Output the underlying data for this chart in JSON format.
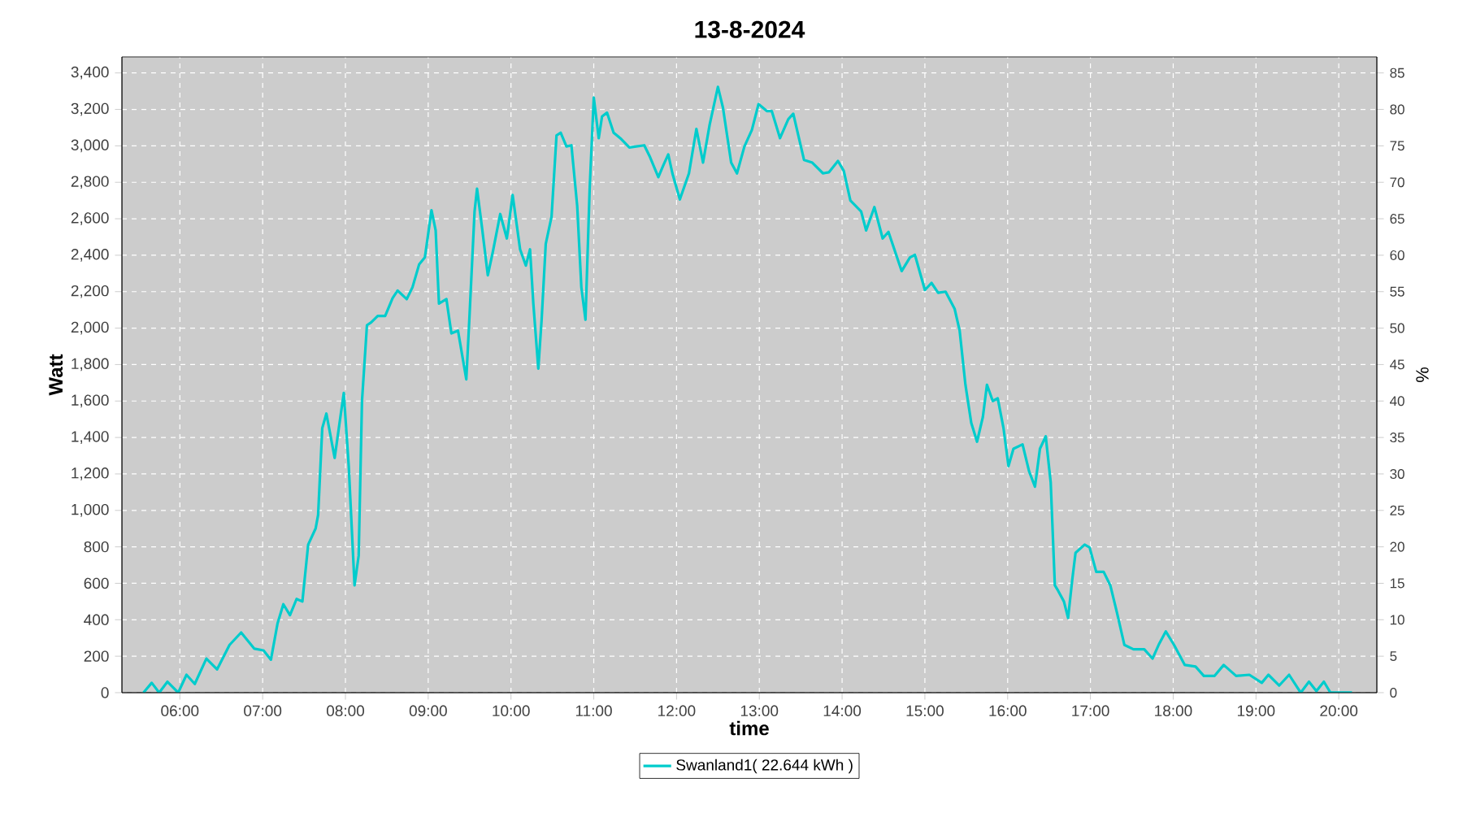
{
  "chart_data": {
    "type": "line",
    "title": "13-8-2024",
    "xlabel": "time",
    "ylabel": "Watt",
    "y2label": "%",
    "x": [
      5.56,
      5.66,
      5.75,
      5.85,
      5.98,
      6.08,
      6.18,
      6.32,
      6.45,
      6.6,
      6.74,
      6.9,
      7.01,
      7.1,
      7.18,
      7.25,
      7.33,
      7.41,
      7.48,
      7.55,
      7.64,
      7.67,
      7.72,
      7.77,
      7.87,
      7.92,
      7.98,
      8.04,
      8.11,
      8.16,
      8.2,
      8.26,
      8.31,
      8.39,
      8.48,
      8.57,
      8.63,
      8.74,
      8.81,
      8.89,
      8.96,
      9.04,
      9.09,
      9.13,
      9.22,
      9.28,
      9.36,
      9.46,
      9.5,
      9.56,
      9.59,
      9.65,
      9.72,
      9.78,
      9.87,
      9.95,
      10.02,
      10.11,
      10.18,
      10.23,
      10.27,
      10.33,
      10.37,
      10.42,
      10.49,
      10.55,
      10.6,
      10.67,
      10.73,
      10.8,
      10.85,
      10.9,
      10.95,
      11.0,
      11.06,
      11.1,
      11.16,
      11.24,
      11.32,
      11.43,
      11.61,
      11.68,
      11.78,
      11.84,
      11.9,
      11.95,
      12.04,
      12.15,
      12.24,
      12.32,
      12.4,
      12.5,
      12.56,
      12.66,
      12.73,
      12.82,
      12.91,
      12.99,
      13.09,
      13.15,
      13.25,
      13.35,
      13.41,
      13.54,
      13.64,
      13.77,
      13.84,
      13.95,
      14.02,
      14.1,
      14.23,
      14.29,
      14.39,
      14.49,
      14.56,
      14.72,
      14.82,
      14.88,
      15.0,
      15.08,
      15.16,
      15.25,
      15.36,
      15.42,
      15.49,
      15.56,
      15.63,
      15.7,
      15.75,
      15.82,
      15.88,
      15.95,
      16.01,
      16.07,
      16.18,
      16.26,
      16.33,
      16.39,
      16.46,
      16.52,
      16.57,
      16.61,
      16.68,
      16.73,
      16.78,
      16.82,
      16.93,
      16.99,
      17.07,
      17.16,
      17.24,
      17.32,
      17.41,
      17.52,
      17.65,
      17.75,
      17.83,
      17.91,
      18.01,
      18.14,
      18.27,
      18.37,
      18.5,
      18.61,
      18.76,
      18.92,
      19.07,
      19.15,
      19.28,
      19.4,
      19.54,
      19.64,
      19.73,
      19.82,
      19.9,
      20.16
    ],
    "series": [
      {
        "name": "Swanland1( 22.644 kWh )",
        "color": "#00cccc",
        "values": [
          0,
          54,
          0,
          60,
          0,
          98,
          48,
          187,
          128,
          262,
          330,
          241,
          232,
          181,
          380,
          485,
          425,
          514,
          500,
          812,
          901,
          975,
          1451,
          1531,
          1288,
          1451,
          1644,
          1243,
          589,
          752,
          1600,
          2016,
          2031,
          2067,
          2067,
          2165,
          2206,
          2159,
          2224,
          2349,
          2388,
          2647,
          2536,
          2135,
          2159,
          1971,
          1986,
          1719,
          2076,
          2640,
          2765,
          2551,
          2290,
          2417,
          2626,
          2492,
          2730,
          2432,
          2343,
          2432,
          2135,
          1778,
          2046,
          2462,
          2611,
          3057,
          3072,
          2997,
          3003,
          2670,
          2224,
          2046,
          2759,
          3265,
          3042,
          3161,
          3182,
          3072,
          3042,
          2991,
          3003,
          2938,
          2828,
          2893,
          2953,
          2849,
          2706,
          2849,
          3093,
          2908,
          3116,
          3324,
          3211,
          2908,
          2849,
          2997,
          3087,
          3229,
          3191,
          3191,
          3042,
          3146,
          3176,
          2923,
          2908,
          2849,
          2855,
          2917,
          2863,
          2700,
          2640,
          2536,
          2664,
          2492,
          2528,
          2313,
          2388,
          2402,
          2209,
          2248,
          2194,
          2200,
          2105,
          1986,
          1689,
          1481,
          1377,
          1511,
          1689,
          1600,
          1615,
          1451,
          1243,
          1338,
          1362,
          1213,
          1130,
          1338,
          1406,
          1154,
          589,
          559,
          500,
          410,
          618,
          767,
          812,
          797,
          663,
          663,
          589,
          440,
          262,
          238,
          238,
          187,
          268,
          336,
          262,
          152,
          143,
          92,
          92,
          152,
          92,
          98,
          54,
          98,
          39,
          98,
          0,
          60,
          9,
          60,
          0,
          0
        ]
      }
    ],
    "xlim": [
      5.3,
      20.46
    ],
    "xticks": [
      {
        "value": 6,
        "label": "06:00"
      },
      {
        "value": 7,
        "label": "07:00"
      },
      {
        "value": 8,
        "label": "08:00"
      },
      {
        "value": 9,
        "label": "09:00"
      },
      {
        "value": 10,
        "label": "10:00"
      },
      {
        "value": 11,
        "label": "11:00"
      },
      {
        "value": 12,
        "label": "12:00"
      },
      {
        "value": 13,
        "label": "13:00"
      },
      {
        "value": 14,
        "label": "14:00"
      },
      {
        "value": 15,
        "label": "15:00"
      },
      {
        "value": 16,
        "label": "16:00"
      },
      {
        "value": 17,
        "label": "17:00"
      },
      {
        "value": 18,
        "label": "18:00"
      },
      {
        "value": 19,
        "label": "19:00"
      },
      {
        "value": 20,
        "label": "20:00"
      }
    ],
    "ylim": [
      0,
      3488
    ],
    "yticks": [
      0,
      200,
      400,
      600,
      800,
      {
        "value": 1000,
        "label": "1,000"
      },
      {
        "value": 1200,
        "label": "1,200"
      },
      {
        "value": 1400,
        "label": "1,400"
      },
      {
        "value": 1600,
        "label": "1,600"
      },
      {
        "value": 1800,
        "label": "1,800"
      },
      {
        "value": 2000,
        "label": "2,000"
      },
      {
        "value": 2200,
        "label": "2,200"
      },
      {
        "value": 2400,
        "label": "2,400"
      },
      {
        "value": 2600,
        "label": "2,600"
      },
      {
        "value": 2800,
        "label": "2,800"
      },
      {
        "value": 3000,
        "label": "3,000"
      },
      {
        "value": 3200,
        "label": "3,200"
      },
      {
        "value": 3400,
        "label": "3,400"
      }
    ],
    "y2lim": [
      0,
      87.2
    ],
    "y2ticks": [
      0,
      5,
      10,
      15,
      20,
      25,
      30,
      35,
      40,
      45,
      50,
      55,
      60,
      65,
      70,
      75,
      80,
      85
    ],
    "grid": true,
    "legend": "bottom",
    "line_style": "solid"
  }
}
